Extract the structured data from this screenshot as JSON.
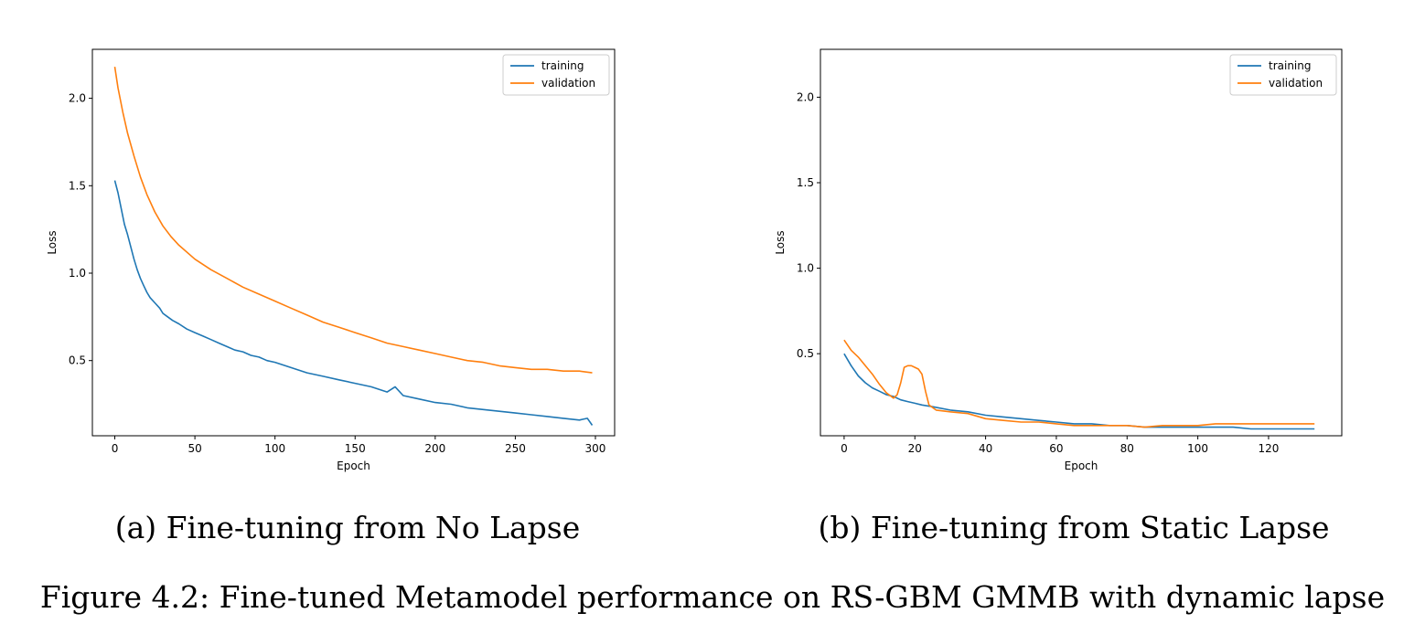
{
  "figure_caption": "Figure 4.2: Fine-tuned Metamodel performance on RS-GBM GMMB with dynamic lapse",
  "colors": {
    "training": "#1f77b4",
    "validation": "#ff7f0e"
  },
  "chart_data": [
    {
      "type": "line",
      "caption": "(a) Fine-tuning from No Lapse",
      "xlabel": "Epoch",
      "ylabel": "Loss",
      "xlim": [
        -14,
        312
      ],
      "ylim": [
        0.07,
        2.28
      ],
      "xticks": [
        0,
        50,
        100,
        150,
        200,
        250,
        300
      ],
      "yticks": [
        0.5,
        1.0,
        1.5,
        2.0
      ],
      "ytick_labels": [
        "0.5",
        "1.0",
        "1.5",
        "2.0"
      ],
      "legend": "top-right",
      "grid": false,
      "series": [
        {
          "name": "training",
          "color": "#1f77b4",
          "x": [
            0,
            2,
            4,
            6,
            8,
            10,
            12,
            14,
            16,
            18,
            20,
            22,
            25,
            28,
            30,
            33,
            36,
            40,
            45,
            50,
            55,
            60,
            65,
            70,
            75,
            80,
            85,
            90,
            95,
            100,
            110,
            120,
            130,
            140,
            150,
            160,
            170,
            175,
            180,
            190,
            200,
            210,
            220,
            230,
            240,
            250,
            260,
            270,
            280,
            290,
            295,
            298
          ],
          "y": [
            1.53,
            1.46,
            1.37,
            1.28,
            1.22,
            1.15,
            1.08,
            1.02,
            0.97,
            0.93,
            0.89,
            0.86,
            0.83,
            0.8,
            0.77,
            0.75,
            0.73,
            0.71,
            0.68,
            0.66,
            0.64,
            0.62,
            0.6,
            0.58,
            0.56,
            0.55,
            0.53,
            0.52,
            0.5,
            0.49,
            0.46,
            0.43,
            0.41,
            0.39,
            0.37,
            0.35,
            0.32,
            0.35,
            0.3,
            0.28,
            0.26,
            0.25,
            0.23,
            0.22,
            0.21,
            0.2,
            0.19,
            0.18,
            0.17,
            0.16,
            0.17,
            0.13
          ]
        },
        {
          "name": "validation",
          "color": "#ff7f0e",
          "x": [
            0,
            2,
            5,
            8,
            12,
            16,
            20,
            25,
            30,
            35,
            40,
            50,
            60,
            70,
            80,
            90,
            100,
            110,
            120,
            130,
            140,
            150,
            160,
            170,
            180,
            190,
            200,
            210,
            220,
            230,
            240,
            250,
            260,
            270,
            280,
            290,
            298
          ],
          "y": [
            2.18,
            2.06,
            1.92,
            1.8,
            1.67,
            1.55,
            1.45,
            1.35,
            1.27,
            1.21,
            1.16,
            1.08,
            1.02,
            0.97,
            0.92,
            0.88,
            0.84,
            0.8,
            0.76,
            0.72,
            0.69,
            0.66,
            0.63,
            0.6,
            0.58,
            0.56,
            0.54,
            0.52,
            0.5,
            0.49,
            0.47,
            0.46,
            0.45,
            0.45,
            0.44,
            0.44,
            0.43
          ]
        }
      ]
    },
    {
      "type": "line",
      "caption": "(b) Fine-tuning from Static Lapse",
      "xlabel": "Epoch",
      "ylabel": "Loss",
      "xlim": [
        -6.7,
        140.7
      ],
      "ylim": [
        0.02,
        2.28
      ],
      "xticks": [
        0,
        20,
        40,
        60,
        80,
        100,
        120
      ],
      "yticks": [
        0.5,
        1.0,
        1.5,
        2.0
      ],
      "ytick_labels": [
        "0.5",
        "1.0",
        "1.5",
        "2.0"
      ],
      "legend": "top-right",
      "grid": false,
      "series": [
        {
          "name": "training",
          "color": "#1f77b4",
          "x": [
            0,
            2,
            4,
            6,
            8,
            10,
            12,
            14,
            16,
            18,
            20,
            22,
            25,
            30,
            35,
            40,
            45,
            50,
            55,
            60,
            65,
            70,
            75,
            80,
            85,
            90,
            95,
            100,
            105,
            110,
            115,
            120,
            125,
            130,
            133
          ],
          "y": [
            0.5,
            0.43,
            0.37,
            0.33,
            0.3,
            0.28,
            0.26,
            0.25,
            0.23,
            0.22,
            0.21,
            0.2,
            0.19,
            0.17,
            0.16,
            0.14,
            0.13,
            0.12,
            0.11,
            0.1,
            0.09,
            0.09,
            0.08,
            0.08,
            0.07,
            0.07,
            0.07,
            0.07,
            0.07,
            0.07,
            0.06,
            0.06,
            0.06,
            0.06,
            0.06
          ]
        },
        {
          "name": "validation",
          "color": "#ff7f0e",
          "x": [
            0,
            2,
            4,
            6,
            8,
            10,
            12,
            14,
            15,
            16,
            17,
            18,
            19,
            20,
            21,
            22,
            23,
            24,
            26,
            30,
            35,
            40,
            45,
            50,
            55,
            60,
            65,
            70,
            75,
            80,
            85,
            90,
            95,
            100,
            105,
            110,
            115,
            120,
            125,
            130,
            133
          ],
          "y": [
            0.58,
            0.52,
            0.48,
            0.43,
            0.38,
            0.32,
            0.27,
            0.24,
            0.26,
            0.33,
            0.42,
            0.43,
            0.43,
            0.42,
            0.41,
            0.38,
            0.28,
            0.2,
            0.17,
            0.16,
            0.15,
            0.12,
            0.11,
            0.1,
            0.1,
            0.09,
            0.08,
            0.08,
            0.08,
            0.08,
            0.07,
            0.08,
            0.08,
            0.08,
            0.09,
            0.09,
            0.09,
            0.09,
            0.09,
            0.09,
            0.09
          ]
        }
      ]
    }
  ]
}
